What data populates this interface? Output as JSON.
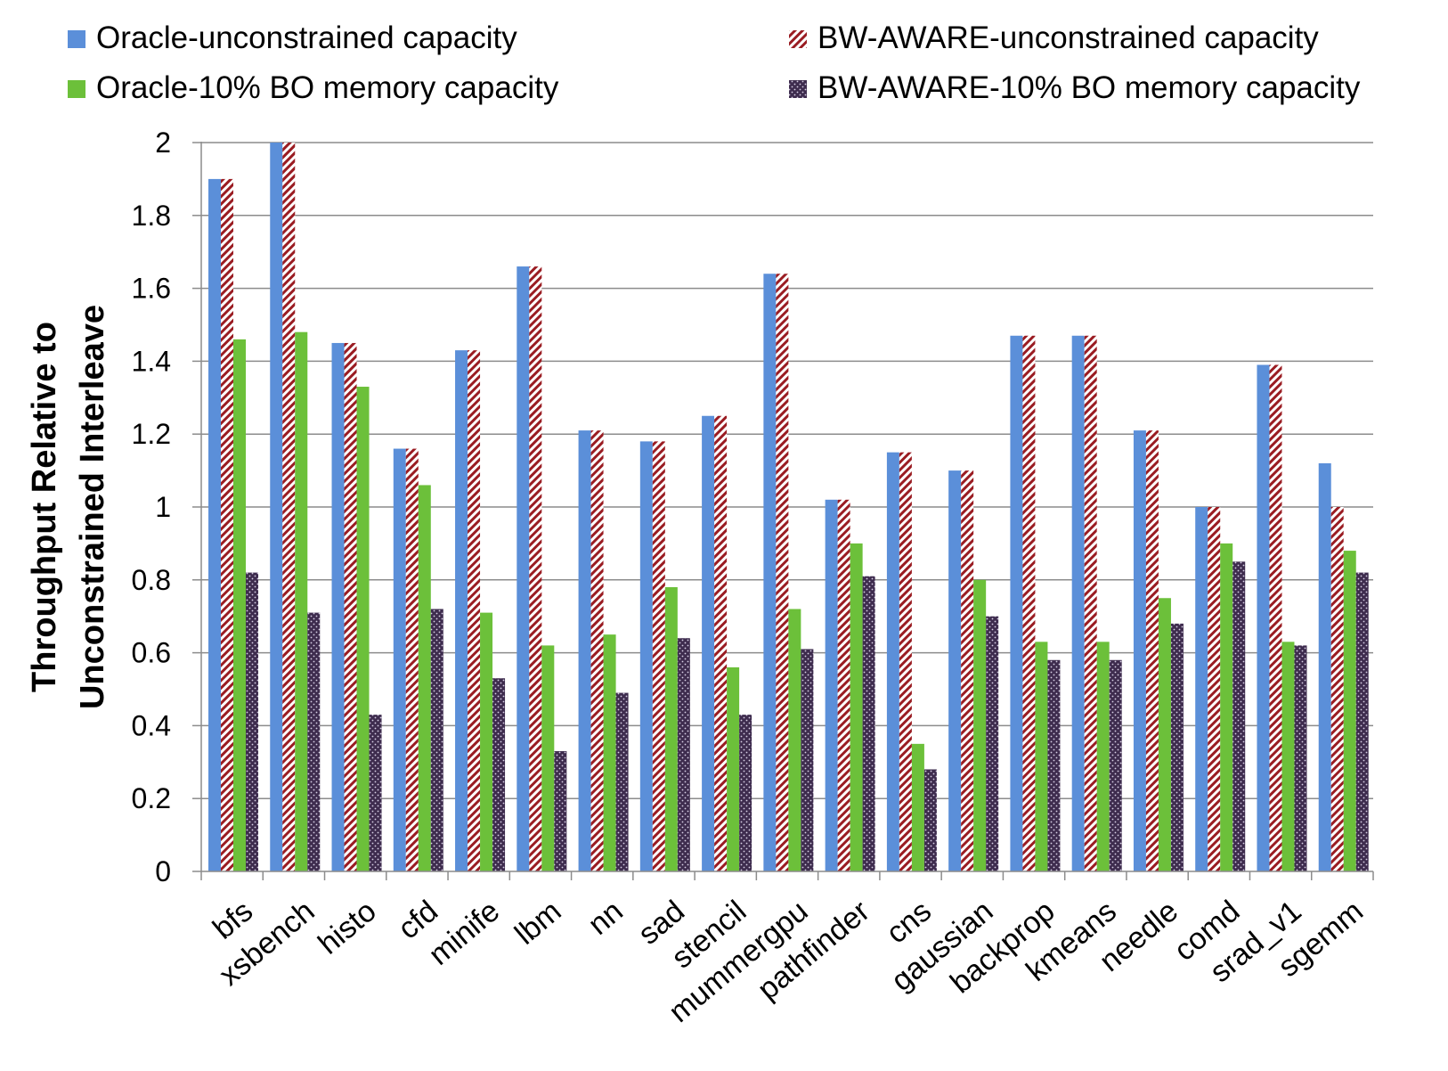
{
  "chart_data": {
    "type": "bar",
    "title": "",
    "xlabel": "",
    "ylabel_lines": [
      "Throughput Relative to",
      "Unconstrained Interleave"
    ],
    "ylim": [
      0,
      2
    ],
    "yticks": [
      0,
      0.2,
      0.4,
      0.6,
      0.8,
      1,
      1.2,
      1.4,
      1.6,
      1.8,
      2
    ],
    "ytick_labels": [
      "0",
      "0.2",
      "0.4",
      "0.6",
      "0.8",
      "1",
      "1.2",
      "1.4",
      "1.6",
      "1.8",
      "2"
    ],
    "grid": true,
    "legend_position": "top",
    "categories": [
      "bfs",
      "xsbench",
      "histo",
      "cfd",
      "minife",
      "lbm",
      "nn",
      "sad",
      "stencil",
      "mummergpu",
      "pathfinder",
      "cns",
      "gaussian",
      "backprop",
      "kmeans",
      "needle",
      "comd",
      "srad_v1",
      "sgemm"
    ],
    "series": [
      {
        "name": "Oracle-unconstrained capacity",
        "color": "#5b8fd9",
        "pattern": "solid",
        "values": [
          1.9,
          2.0,
          1.45,
          1.16,
          1.43,
          1.66,
          1.21,
          1.18,
          1.25,
          1.64,
          1.02,
          1.15,
          1.1,
          1.47,
          1.47,
          1.21,
          1.0,
          1.39,
          1.12
        ]
      },
      {
        "name": "BW-AWARE-unconstrained capacity",
        "color": "#9a1c22",
        "pattern": "diagonal-stripes",
        "values": [
          1.9,
          2.0,
          1.45,
          1.16,
          1.43,
          1.66,
          1.21,
          1.18,
          1.25,
          1.64,
          1.02,
          1.15,
          1.1,
          1.47,
          1.47,
          1.21,
          1.0,
          1.39,
          1.0
        ]
      },
      {
        "name": "Oracle-10% BO memory capacity",
        "color": "#6cc03a",
        "pattern": "solid",
        "values": [
          1.46,
          1.48,
          1.33,
          1.06,
          0.71,
          0.62,
          0.65,
          0.78,
          0.56,
          0.72,
          0.9,
          0.35,
          0.8,
          0.63,
          0.63,
          0.75,
          0.9,
          0.63,
          0.88
        ]
      },
      {
        "name": "BW-AWARE-10% BO memory capacity",
        "color": "#3e2c4e",
        "pattern": "dots",
        "values": [
          0.82,
          0.71,
          0.43,
          0.72,
          0.53,
          0.33,
          0.49,
          0.64,
          0.43,
          0.61,
          0.81,
          0.28,
          0.7,
          0.58,
          0.58,
          0.68,
          0.85,
          0.62,
          0.82
        ]
      }
    ]
  }
}
